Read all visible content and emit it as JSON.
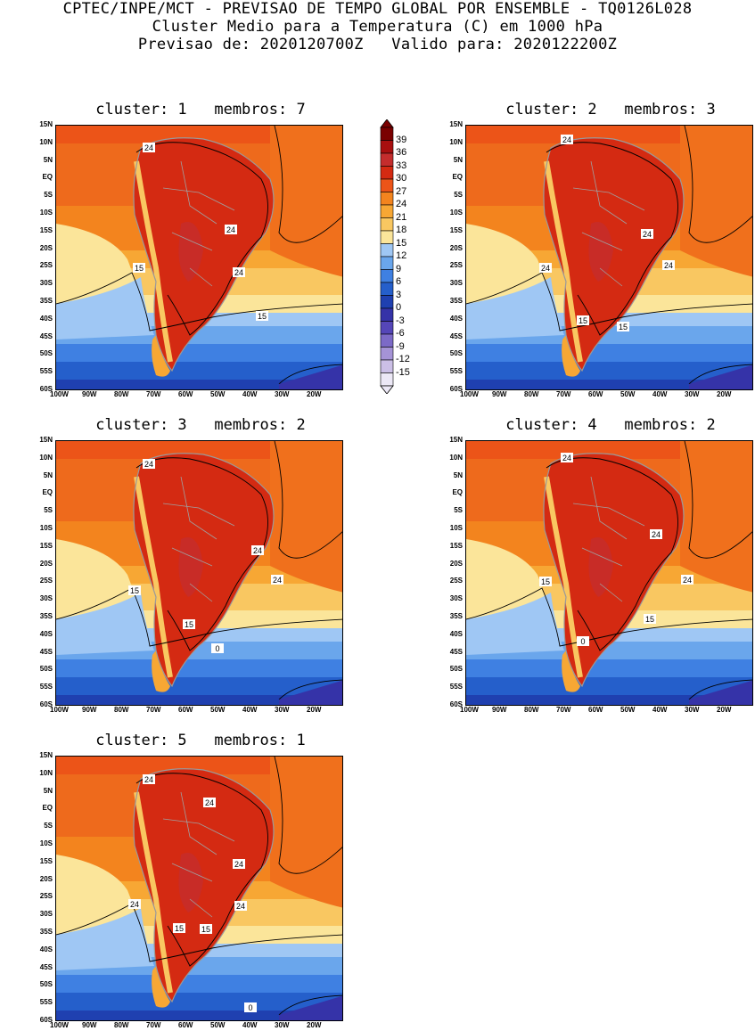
{
  "header": {
    "line1": "CPTEC/INPE/MCT - PREVISAO DE TEMPO GLOBAL POR ENSEMBLE - TQ0126L028",
    "line2": "Cluster Medio para a Temperatura (C) em 1000 hPa",
    "line3": "Previsao de: 2020120700Z   Valido para: 2020122200Z"
  },
  "lat_ticks": [
    "15N",
    "10N",
    "5N",
    "EQ",
    "5S",
    "10S",
    "15S",
    "20S",
    "25S",
    "30S",
    "35S",
    "40S",
    "45S",
    "50S",
    "55S",
    "60S"
  ],
  "lon_ticks": [
    "100W",
    "90W",
    "80W",
    "70W",
    "60W",
    "50W",
    "40W",
    "30W",
    "20W"
  ],
  "colorbar": {
    "labels": [
      "39",
      "36",
      "33",
      "30",
      "27",
      "24",
      "21",
      "18",
      "15",
      "12",
      "9",
      "6",
      "3",
      "0",
      "-3",
      "-6",
      "-9",
      "-12",
      "-15"
    ],
    "colors": [
      "#7a0000",
      "#a80f0f",
      "#c42d2d",
      "#d42a12",
      "#ec5418",
      "#f3841e",
      "#f7a734",
      "#f9c761",
      "#fbe59a",
      "#9fc7f4",
      "#6aa6ec",
      "#3f80e2",
      "#255fcb",
      "#1f40b0",
      "#3533a8",
      "#5546b8",
      "#7c6ac7",
      "#a593d6",
      "#cbbfe6",
      "#ece8f6"
    ]
  },
  "panels": [
    {
      "title": "cluster: 1   membros: 7",
      "labels": [
        "24",
        "24",
        "24",
        "15",
        "15"
      ]
    },
    {
      "title": "cluster: 2   membros: 3",
      "labels": [
        "24",
        "24",
        "24",
        "24",
        "15",
        "15"
      ]
    },
    {
      "title": "cluster: 3   membros: 2",
      "labels": [
        "24",
        "24",
        "24",
        "15",
        "15",
        "0"
      ]
    },
    {
      "title": "cluster: 4   membros: 2",
      "labels": [
        "24",
        "24",
        "24",
        "15",
        "15",
        "0"
      ]
    },
    {
      "title": "cluster: 5   membros: 1",
      "labels": [
        "24",
        "24",
        "24",
        "24",
        "24",
        "15",
        "15",
        "0"
      ]
    }
  ]
}
